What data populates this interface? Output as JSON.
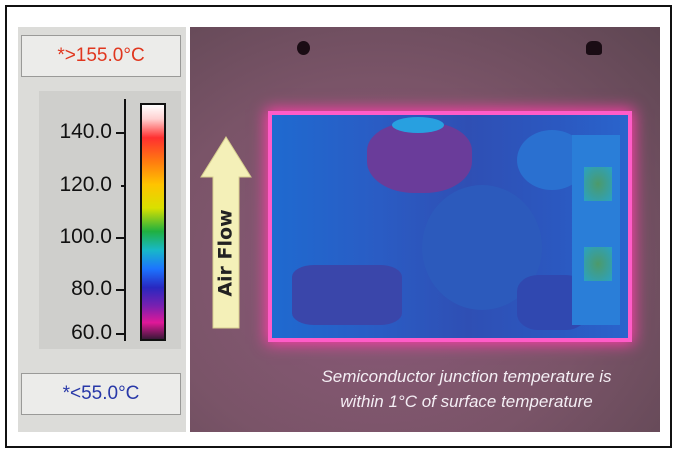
{
  "temperature_scale": {
    "max_readout": "*>155.0°C",
    "min_readout": "*<55.0°C",
    "max_color": "#e0361e",
    "min_color": "#2838a8",
    "ticks": [
      "140.0",
      "120.0",
      "100.0",
      "80.0",
      "60.0"
    ]
  },
  "thermal_image": {
    "arrow_label": "Air Flow",
    "caption_line1": "Semiconductor junction temperature is",
    "caption_line2": "within 1°C of surface temperature"
  }
}
